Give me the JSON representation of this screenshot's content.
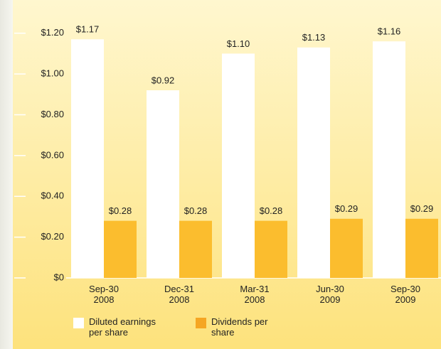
{
  "chart_data": {
    "type": "bar",
    "categories": [
      "Sep-30\n2008",
      "Dec-31\n2008",
      "Mar-31\n2008",
      "Jun-30\n2009",
      "Sep-30\n2009"
    ],
    "series": [
      {
        "name": "Diluted earnings\nper share",
        "color": "#ffffff",
        "values": [
          1.17,
          0.92,
          1.1,
          1.13,
          1.16
        ],
        "value_labels": [
          "$1.17",
          "$0.92",
          "$1.10",
          "$1.13",
          "$1.16"
        ]
      },
      {
        "name": "Dividends per\nshare",
        "color": "#fbbd2e",
        "values": [
          0.28,
          0.28,
          0.28,
          0.29,
          0.29
        ],
        "value_labels": [
          "$0.28",
          "$0.28",
          "$0.28",
          "$0.29",
          "$0.29"
        ]
      }
    ],
    "ylim": [
      0,
      1.3
    ],
    "yticks": [
      {
        "value": 0,
        "label": "$0"
      },
      {
        "value": 0.2,
        "label": "$0.20"
      },
      {
        "value": 0.4,
        "label": "$0.40"
      },
      {
        "value": 0.6,
        "label": "$0.60"
      },
      {
        "value": 0.8,
        "label": "$0.80"
      },
      {
        "value": 1.0,
        "label": "$1.00"
      },
      {
        "value": 1.2,
        "label": "$1.20"
      }
    ]
  }
}
